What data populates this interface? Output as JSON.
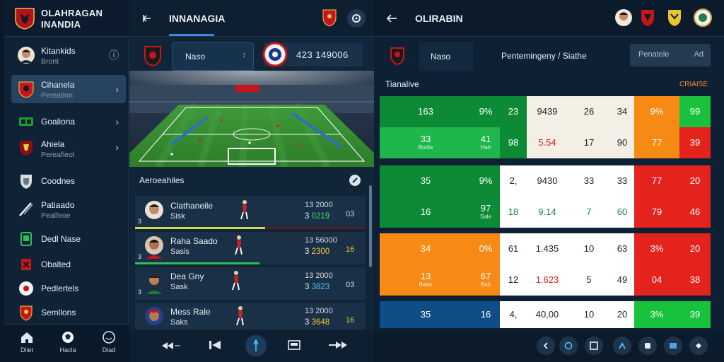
{
  "brand": {
    "line1": "OLAHRAGAN",
    "line2": "INANDIA"
  },
  "sidebar": {
    "items": [
      {
        "label": "Kitankids",
        "sub": "Bront",
        "icon": "player-avatar-icon",
        "extra": "ⓘ"
      },
      {
        "label": "Cihanela",
        "sub": "Pereation",
        "icon": "club-crest-icon",
        "chevron": "›",
        "active": true
      },
      {
        "label": "Goaliona",
        "sub": "",
        "icon": "scoreboard-icon",
        "chevron": "›"
      },
      {
        "label": "Ahiela",
        "sub": "Pereafieol",
        "icon": "club-crest-icon",
        "chevron": "›"
      },
      {
        "label": "Coodnes",
        "sub": "",
        "icon": "shield-icon"
      },
      {
        "label": "Patiaado",
        "sub": "Pealfeoe",
        "icon": "feather-icon"
      },
      {
        "label": "Dedl Nase",
        "sub": "",
        "icon": "tablet-icon"
      },
      {
        "label": "Obalted",
        "sub": "",
        "icon": "flag-icon"
      },
      {
        "label": "Pedlertels",
        "sub": "",
        "icon": "ball-icon"
      },
      {
        "label": "Semllons",
        "sub": "",
        "icon": "crest-icon"
      }
    ],
    "bottom": [
      {
        "label": "Diiet",
        "icon": "home-icon"
      },
      {
        "label": "Hacla",
        "icon": "ball-icon"
      },
      {
        "label": "Diad",
        "icon": "circle-icon"
      }
    ]
  },
  "middle": {
    "title": "INNANAGIA",
    "select_label": "Naso",
    "select_arrow": "↕",
    "score_text": "423 149006",
    "section_title": "Aeroeahiles",
    "players": [
      {
        "name": "Clathaneile",
        "sub": "Sisk",
        "num": "3",
        "r1": "13 2000",
        "r2a": "3",
        "r2b": "0219",
        "badge": "03",
        "r2color": "g"
      },
      {
        "name": "Raha Saado",
        "sub": "Sasis",
        "num": "3",
        "r1": "13 56000",
        "r2a": "3",
        "r2b": "2300",
        "badge": "16",
        "r2color": "y"
      },
      {
        "name": "Dea Gny",
        "sub": "Sask",
        "num": "3",
        "r1": "13 2000",
        "r2a": "3",
        "r2b": "3823",
        "badge": "03",
        "r2color": "c"
      },
      {
        "name": "Mess Rale",
        "sub": "Saks",
        "num": "3",
        "r1": "13 2000",
        "r2a": "3",
        "r2b": "3648",
        "badge": "16",
        "r2color": "y"
      }
    ]
  },
  "right": {
    "title": "OLIRABIN",
    "tab_label": "Naso",
    "tab_center": "Pentemingeny / Siathe",
    "tab_right": "Penatele",
    "tab_right_b": "Ad",
    "grid_title": "Tianalive",
    "grid_right": "CRIAISE",
    "rows": [
      [
        "163",
        "9%",
        "23",
        "9439",
        "26",
        "34",
        "9%",
        "99"
      ],
      [
        "33",
        "41",
        "98",
        "5.54",
        "17",
        "90",
        "77",
        "39"
      ],
      [
        "35",
        "9%",
        "2,",
        "9430",
        "33",
        "33",
        "77",
        "20"
      ],
      [
        "16",
        "97",
        "18",
        "9.14",
        "7",
        "60",
        "79",
        "46"
      ],
      [
        "34",
        "0%",
        "61",
        "1.435",
        "10",
        "63",
        "3%",
        "20"
      ],
      [
        "13",
        "67",
        "12",
        "1.623",
        "5",
        "49",
        "04",
        "38"
      ],
      [
        "35",
        "16",
        "4,",
        "40,00",
        "10",
        "20",
        "3%",
        "39"
      ]
    ],
    "sub_labels": {
      "1_0": "Bodle",
      "1_1": "Hab",
      "3_1": "Sale",
      "5_0": "Bade",
      "5_1": "Bab"
    }
  },
  "colors": {
    "green_dark": "#0d8a35",
    "green": "#1fb64b",
    "green_bright": "#18c23c",
    "orange": "#f78a14",
    "red": "#e4231d",
    "cream": "#f4efe4",
    "white": "#ffffff",
    "blue": "#0f4d86",
    "navy": "#0e2134"
  }
}
